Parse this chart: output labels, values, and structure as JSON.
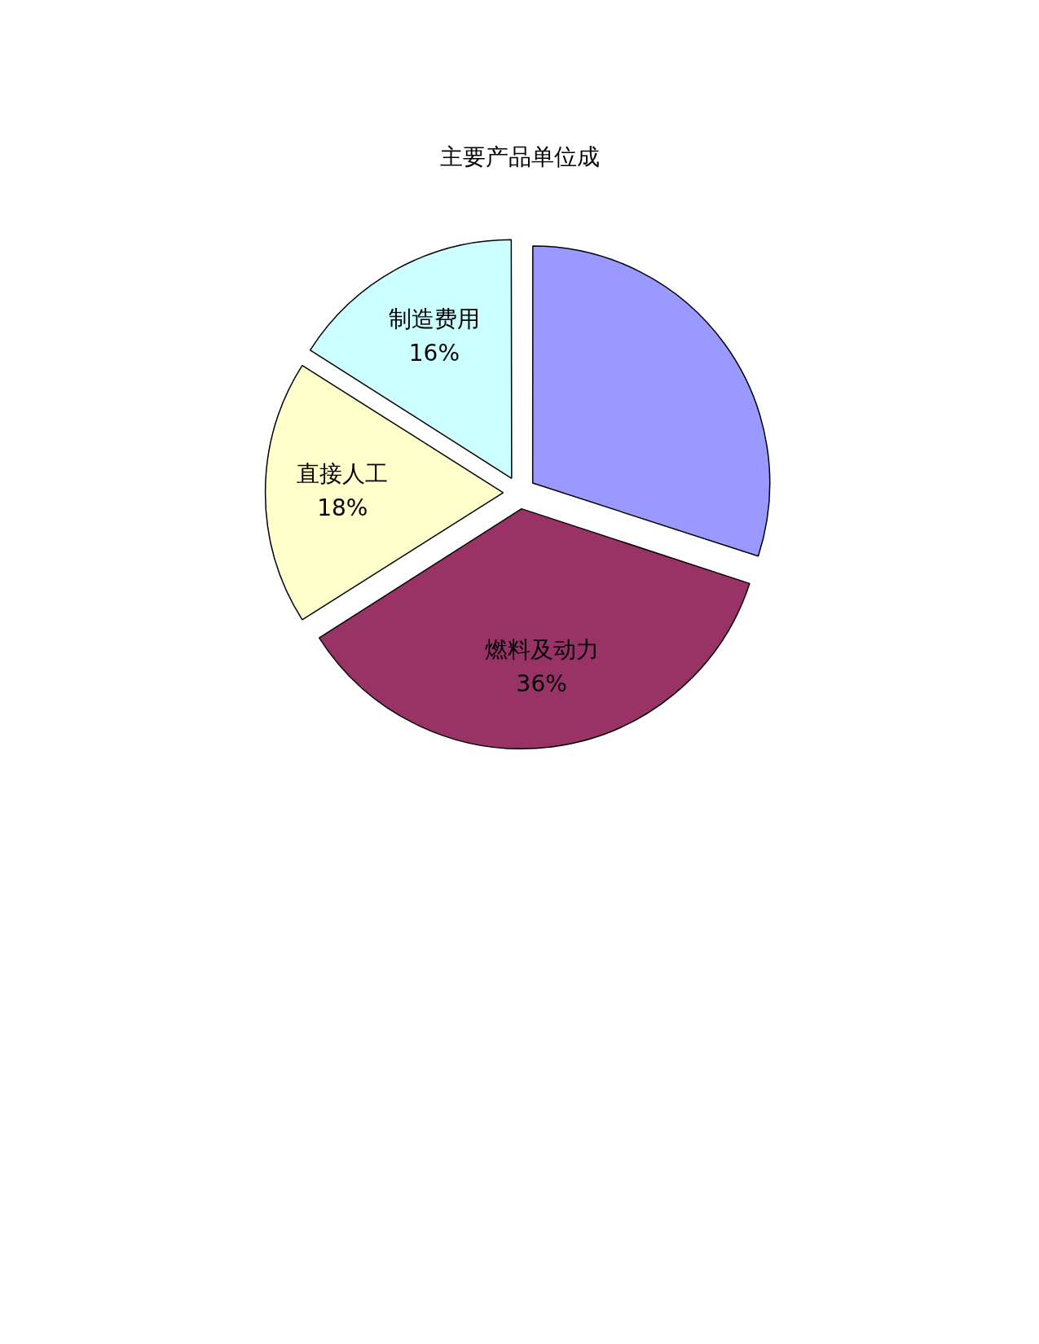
{
  "chart_data": {
    "type": "pie",
    "title": "主要产品单位成",
    "categories": [
      null,
      "燃料及动力",
      "直接人工",
      "制造费用"
    ],
    "values": [
      30,
      36,
      18,
      16
    ],
    "value_labels": [
      null,
      "36%",
      "18%",
      "16%"
    ],
    "colors": [
      "#9999ff",
      "#993366",
      "#ffffcc",
      "#ccffff"
    ]
  }
}
